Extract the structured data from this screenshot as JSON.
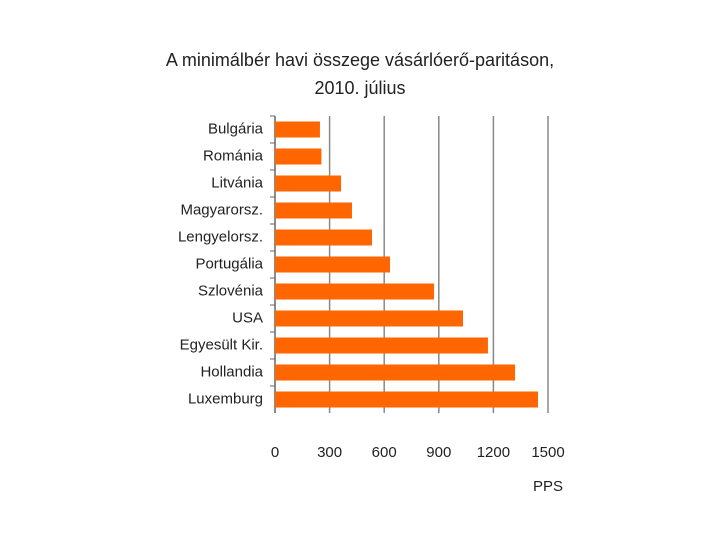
{
  "chart_data": {
    "type": "hbar",
    "title": "A minimálbér havi összege vásárlóerő-paritáson, 2010. július",
    "categories": [
      "Bulgária",
      "Románia",
      "Litvánia",
      "Magyarorsz.",
      "Lengyelorsz.",
      "Portugália",
      "Szlovénia",
      "USA",
      "Egyesült Kir.",
      "Hollandia",
      "Luxemburg"
    ],
    "values": [
      247,
      255,
      363,
      423,
      533,
      632,
      874,
      1033,
      1170,
      1319,
      1445
    ],
    "color": "#ff6600",
    "xlabel": "PPS",
    "xlim": [
      0,
      1500
    ],
    "xticks": [
      0,
      300,
      600,
      900,
      1200,
      1500
    ],
    "grid": true
  }
}
